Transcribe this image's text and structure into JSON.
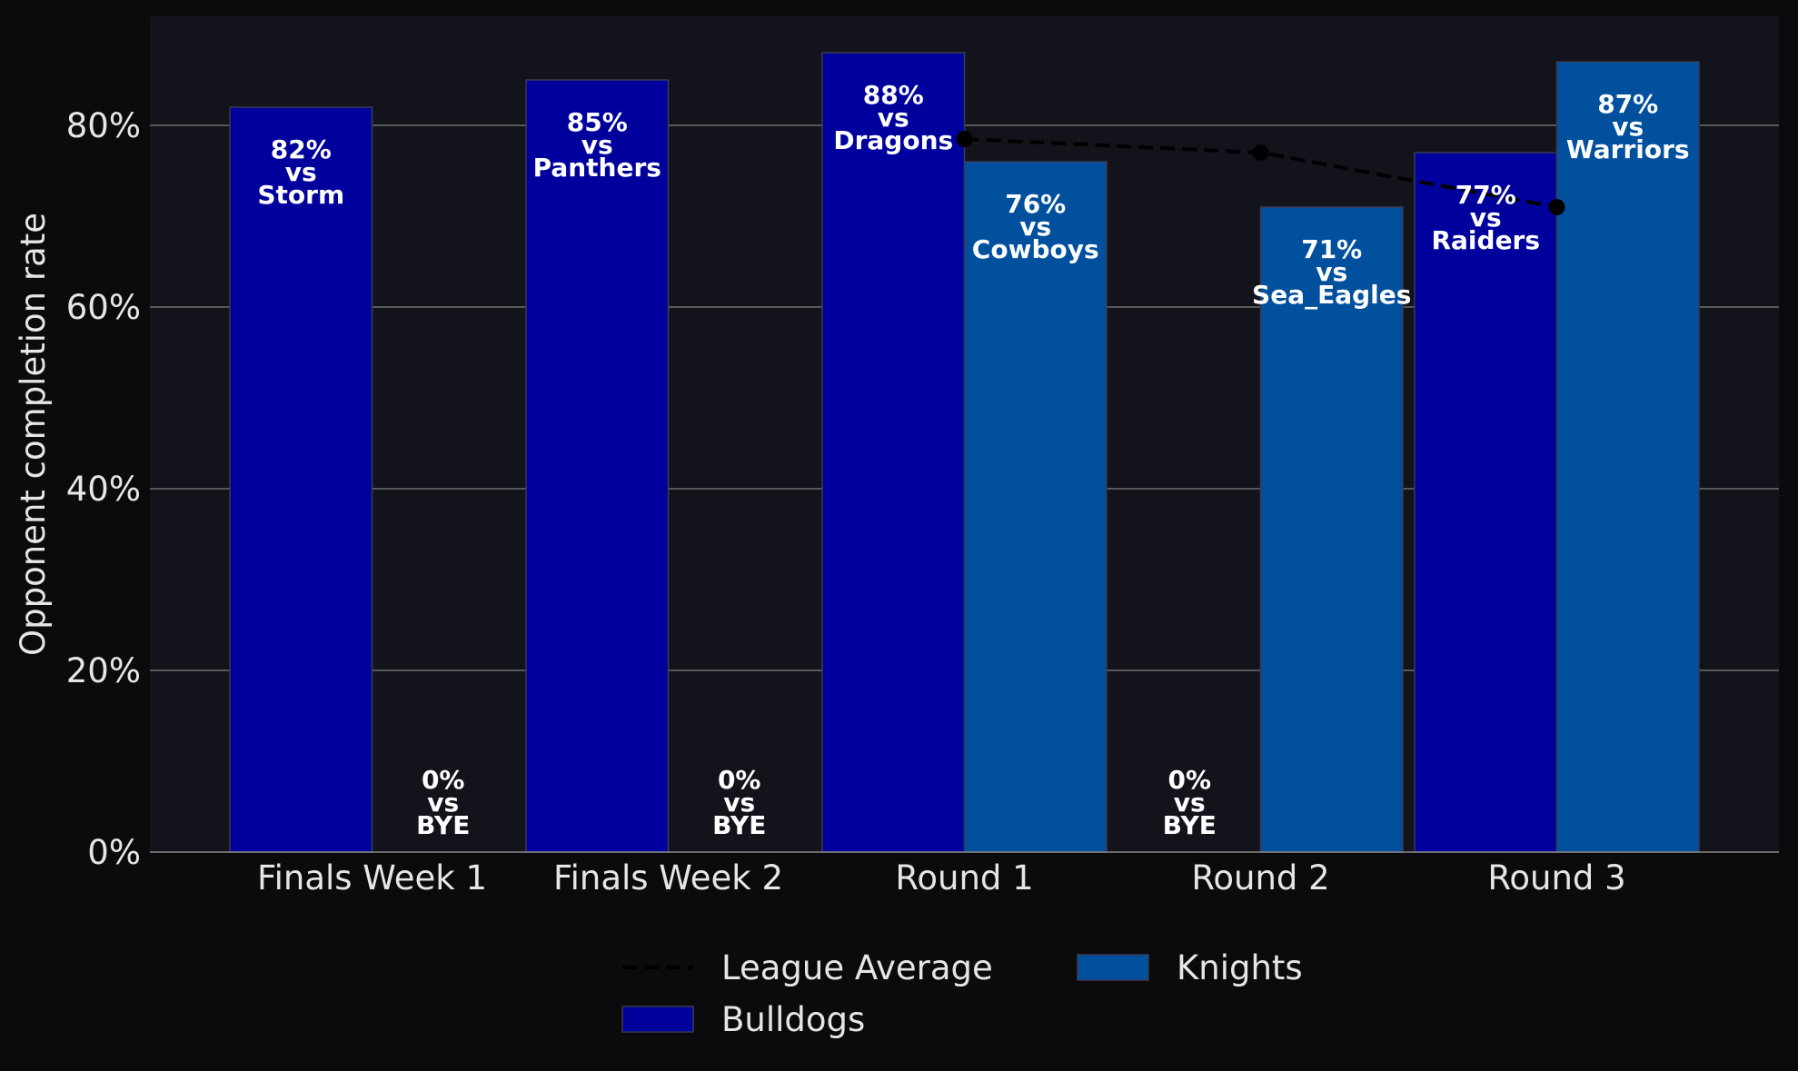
{
  "chart_data": {
    "type": "bar",
    "ylabel": "Opponent completion rate",
    "ylim": [
      0,
      92
    ],
    "y_ticks": [
      0,
      20,
      40,
      60,
      80
    ],
    "y_tick_suffix": "%",
    "grid": true,
    "legend_placement": "bottom-center",
    "categories": [
      "Finals Week 1",
      "Finals Week 2",
      "Round 1",
      "Round 2",
      "Round 3"
    ],
    "series": [
      {
        "name": "Bulldogs",
        "color": "#00009c",
        "values": [
          82,
          85,
          88,
          0,
          77
        ],
        "labels": [
          "82%\nvs\nStorm",
          "85%\nvs\nPanthers",
          "88%\nvs\nDragons",
          "0%\nvs\nBYE",
          "77%\nvs\nRaiders"
        ]
      },
      {
        "name": "Knights",
        "color": "#00509d",
        "values": [
          0,
          0,
          76,
          71,
          87
        ],
        "labels": [
          "0%\nvs\nBYE",
          "0%\nvs\nBYE",
          "76%\nvs\nCowboys",
          "71%\nvs\nSea_Eagles",
          "87%\nvs\nWarriors"
        ]
      }
    ],
    "reference_line": {
      "name": "League Average",
      "style": "dashed",
      "color": "#000000",
      "points": [
        {
          "category": "Round 1",
          "value": 78.5
        },
        {
          "category": "Round 2",
          "value": 77
        },
        {
          "category": "Round 3",
          "value": 71
        }
      ]
    },
    "legend": [
      "League Average",
      "Bulldogs",
      "Knights"
    ]
  },
  "colors": {
    "page_background": "#0b0b0e",
    "plot_background": "#13141b",
    "grid": "#6e6e6e",
    "text": "#e6e6e6"
  }
}
